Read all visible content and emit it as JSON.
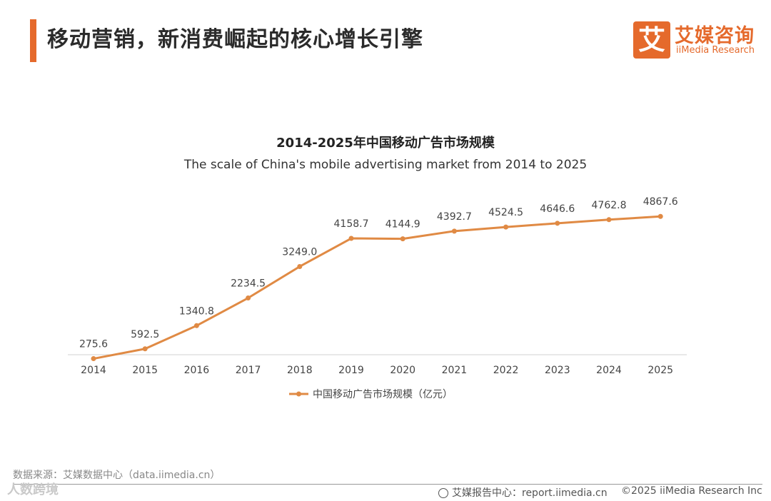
{
  "header": {
    "title": "移动营销，新消费崛起的核心增长引擎",
    "logo_mark": "艾",
    "logo_cn": "艾媒咨询",
    "logo_en": "iiMedia Research"
  },
  "chart_data": {
    "type": "line",
    "title": "2014-2025年中国移动广告市场规模",
    "subtitle": "The scale of China's mobile advertising market from 2014 to 2025",
    "categories": [
      "2014",
      "2015",
      "2016",
      "2017",
      "2018",
      "2019",
      "2020",
      "2021",
      "2022",
      "2023",
      "2024",
      "2025"
    ],
    "series": [
      {
        "name": "中国移动广告市场规模（亿元）",
        "values": [
          275.6,
          592.5,
          1340.8,
          2234.5,
          3249.0,
          4158.7,
          4144.9,
          4392.7,
          4524.5,
          4646.6,
          4762.8,
          4867.6
        ],
        "labels": [
          "275.6",
          "592.5",
          "1340.8",
          "2234.5",
          "3249.0",
          "4158.7",
          "4144.9",
          "4392.7",
          "4524.5",
          "4646.6",
          "4762.8",
          "4867.6"
        ]
      }
    ],
    "xlabel": "",
    "ylabel": "",
    "ylim": [
      0,
      5000
    ],
    "grid": false,
    "legend": "bottom",
    "color": "#e08a44"
  },
  "footer": {
    "source": "数据来源：艾媒数据中心（data.iimedia.cn）",
    "watermark": "人数跨境",
    "center": "艾媒报告中心：report.iimedia.cn",
    "right": "©2025  iiMedia Research  Inc"
  }
}
